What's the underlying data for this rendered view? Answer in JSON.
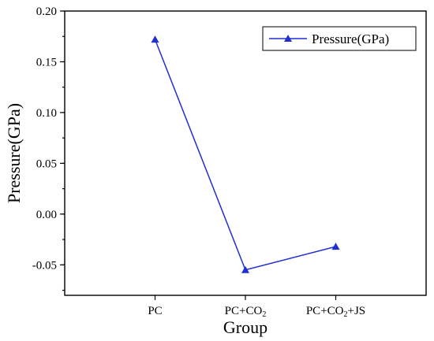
{
  "chart_data": {
    "type": "line",
    "categories": [
      "PC",
      "PC+CO2",
      "PC+CO2+JS"
    ],
    "category_labels": [
      {
        "parts": [
          {
            "text": "PC"
          }
        ]
      },
      {
        "parts": [
          {
            "text": "PC+CO"
          },
          {
            "text": "2",
            "sub": true
          }
        ]
      },
      {
        "parts": [
          {
            "text": "PC+CO"
          },
          {
            "text": "2",
            "sub": true
          },
          {
            "text": "+JS"
          }
        ]
      }
    ],
    "series": [
      {
        "name": "Pressure(GPa)",
        "values": [
          0.172,
          -0.055,
          -0.032
        ],
        "color": "#1f2fd1",
        "marker": "triangle"
      }
    ],
    "xlabel": "Group",
    "ylabel": "Pressure(GPa)",
    "ylim": [
      -0.08,
      0.2
    ],
    "yticks": [
      "-0.05",
      "0.00",
      "0.05",
      "0.10",
      "0.15",
      "0.20"
    ],
    "ytick_values": [
      -0.05,
      0.0,
      0.05,
      0.1,
      0.15,
      0.2
    ],
    "legend_position": "top-right",
    "grid": false
  }
}
